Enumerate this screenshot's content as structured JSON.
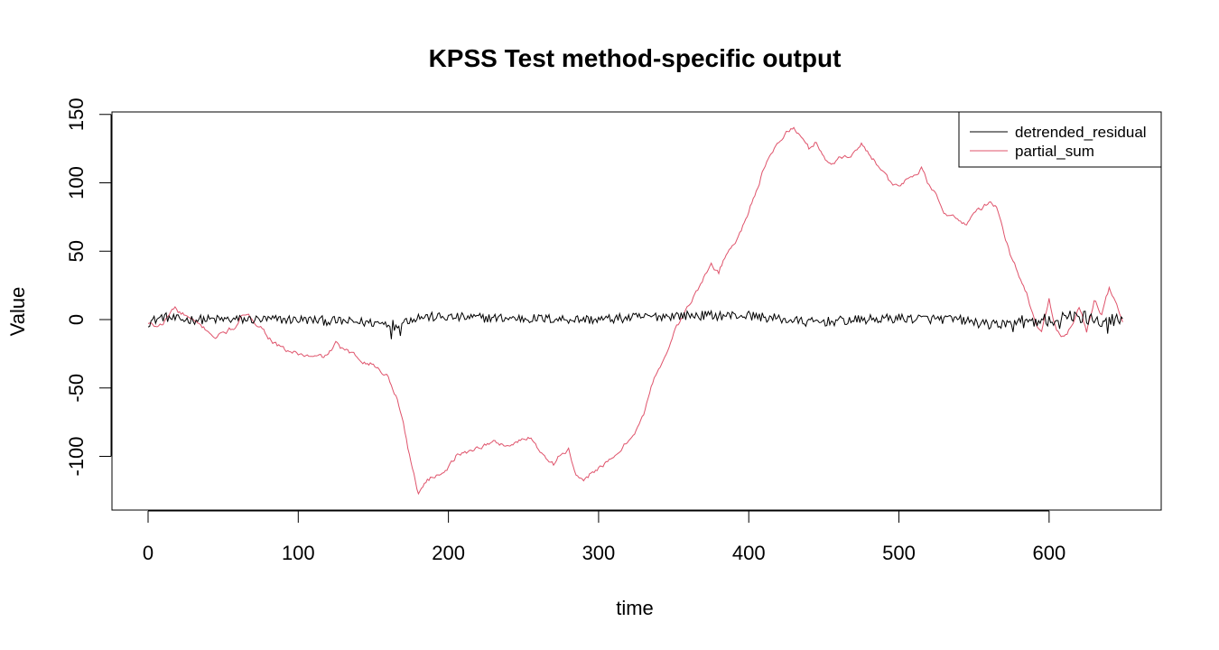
{
  "chart_data": {
    "type": "line",
    "title": "KPSS Test method-specific output",
    "xlabel": "time",
    "ylabel": "Value",
    "xlim": [
      0,
      650
    ],
    "ylim": [
      -138,
      152
    ],
    "x_ticks": [
      0,
      100,
      200,
      300,
      400,
      500,
      600
    ],
    "y_ticks": [
      -100,
      -50,
      0,
      50,
      100,
      150
    ],
    "grid": false,
    "legend_position": "top-right",
    "n_points": 650,
    "series": [
      {
        "name": "detrended_residual",
        "color": "#000000",
        "values_description": "noise around 0, amplitude about ±6",
        "anchors": [
          [
            0,
            -2
          ],
          [
            10,
            2
          ],
          [
            20,
            0
          ],
          [
            100,
            0
          ],
          [
            165,
            -3
          ],
          [
            180,
            2
          ],
          [
            300,
            0
          ],
          [
            350,
            3
          ],
          [
            400,
            3
          ],
          [
            440,
            -2
          ],
          [
            500,
            1
          ],
          [
            540,
            0
          ],
          [
            560,
            -4
          ],
          [
            580,
            -2
          ],
          [
            600,
            0
          ],
          [
            620,
            2
          ],
          [
            649,
            -1
          ]
        ],
        "noise_amplitude": 3.5
      },
      {
        "name": "partial_sum",
        "color": "#DF536B",
        "anchors": [
          [
            0,
            -3
          ],
          [
            5,
            -5
          ],
          [
            10,
            -3
          ],
          [
            15,
            5
          ],
          [
            18,
            10
          ],
          [
            20,
            5
          ],
          [
            25,
            3
          ],
          [
            30,
            -2
          ],
          [
            35,
            -5
          ],
          [
            40,
            -8
          ],
          [
            45,
            -13
          ],
          [
            50,
            -10
          ],
          [
            55,
            -7
          ],
          [
            60,
            -4
          ],
          [
            63,
            3
          ],
          [
            70,
            0
          ],
          [
            75,
            -5
          ],
          [
            80,
            -12
          ],
          [
            85,
            -18
          ],
          [
            90,
            -22
          ],
          [
            100,
            -25
          ],
          [
            110,
            -28
          ],
          [
            118,
            -27
          ],
          [
            125,
            -18
          ],
          [
            130,
            -22
          ],
          [
            140,
            -28
          ],
          [
            150,
            -33
          ],
          [
            160,
            -42
          ],
          [
            165,
            -55
          ],
          [
            170,
            -75
          ],
          [
            175,
            -105
          ],
          [
            180,
            -127
          ],
          [
            185,
            -118
          ],
          [
            190,
            -115
          ],
          [
            200,
            -108
          ],
          [
            205,
            -100
          ],
          [
            210,
            -98
          ],
          [
            220,
            -93
          ],
          [
            230,
            -90
          ],
          [
            240,
            -92
          ],
          [
            250,
            -88
          ],
          [
            255,
            -85
          ],
          [
            260,
            -95
          ],
          [
            265,
            -100
          ],
          [
            270,
            -105
          ],
          [
            275,
            -98
          ],
          [
            280,
            -95
          ],
          [
            285,
            -115
          ],
          [
            290,
            -120
          ],
          [
            295,
            -112
          ],
          [
            300,
            -108
          ],
          [
            310,
            -102
          ],
          [
            315,
            -95
          ],
          [
            320,
            -88
          ],
          [
            325,
            -80
          ],
          [
            330,
            -70
          ],
          [
            335,
            -50
          ],
          [
            340,
            -35
          ],
          [
            345,
            -25
          ],
          [
            350,
            -10
          ],
          [
            355,
            0
          ],
          [
            360,
            10
          ],
          [
            365,
            20
          ],
          [
            370,
            30
          ],
          [
            375,
            40
          ],
          [
            380,
            35
          ],
          [
            385,
            48
          ],
          [
            390,
            55
          ],
          [
            395,
            65
          ],
          [
            400,
            80
          ],
          [
            405,
            95
          ],
          [
            410,
            110
          ],
          [
            415,
            120
          ],
          [
            420,
            130
          ],
          [
            425,
            137
          ],
          [
            430,
            140
          ],
          [
            435,
            133
          ],
          [
            440,
            125
          ],
          [
            445,
            130
          ],
          [
            450,
            120
          ],
          [
            455,
            112
          ],
          [
            460,
            118
          ],
          [
            465,
            120
          ],
          [
            470,
            122
          ],
          [
            475,
            128
          ],
          [
            480,
            122
          ],
          [
            485,
            115
          ],
          [
            490,
            108
          ],
          [
            495,
            98
          ],
          [
            500,
            97
          ],
          [
            505,
            102
          ],
          [
            510,
            106
          ],
          [
            515,
            110
          ],
          [
            520,
            98
          ],
          [
            525,
            90
          ],
          [
            530,
            80
          ],
          [
            535,
            75
          ],
          [
            540,
            72
          ],
          [
            545,
            70
          ],
          [
            550,
            78
          ],
          [
            555,
            82
          ],
          [
            560,
            85
          ],
          [
            565,
            82
          ],
          [
            570,
            62
          ],
          [
            575,
            45
          ],
          [
            580,
            32
          ],
          [
            585,
            20
          ],
          [
            590,
            0
          ],
          [
            595,
            -10
          ],
          [
            600,
            15
          ],
          [
            605,
            -8
          ],
          [
            610,
            -12
          ],
          [
            615,
            -5
          ],
          [
            620,
            8
          ],
          [
            625,
            -8
          ],
          [
            630,
            15
          ],
          [
            635,
            5
          ],
          [
            640,
            22
          ],
          [
            645,
            10
          ],
          [
            649,
            -2
          ]
        ],
        "noise_amplitude": 1.5
      }
    ]
  }
}
